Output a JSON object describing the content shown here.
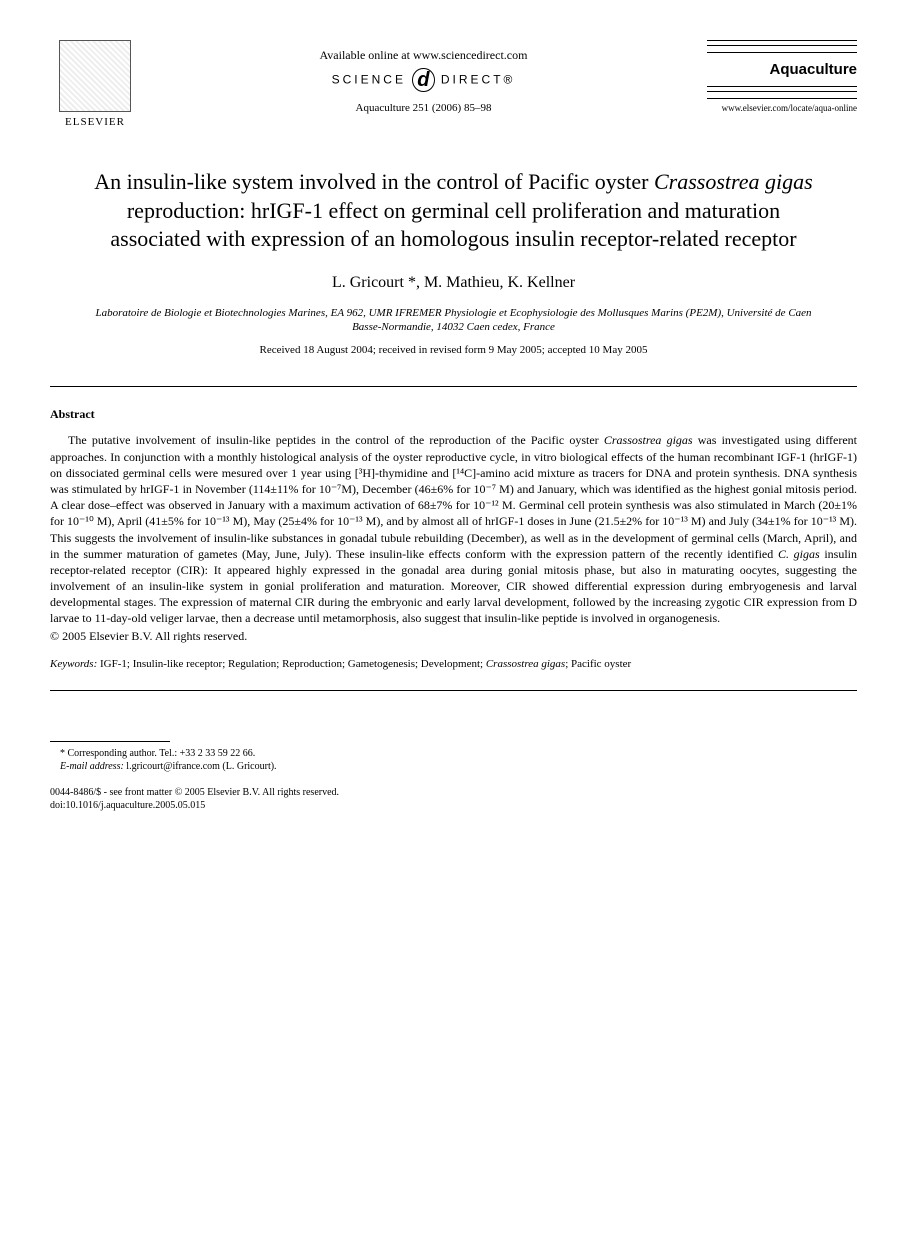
{
  "header": {
    "publisher": "ELSEVIER",
    "available_online": "Available online at www.sciencedirect.com",
    "sciencedirect_left": "SCIENCE",
    "sciencedirect_d": "d",
    "sciencedirect_right": "DIRECT®",
    "journal_ref": "Aquaculture 251 (2006) 85–98",
    "journal_name": "Aquaculture",
    "journal_url": "www.elsevier.com/locate/aqua-online"
  },
  "title": {
    "line1": "An insulin-like system involved in the control of Pacific oyster ",
    "species": "Crassostrea gigas",
    "line2": " reproduction: hrIGF-1 effect on germinal cell proliferation and maturation associated with expression of an homologous insulin receptor-related receptor"
  },
  "authors": "L. Gricourt *, M. Mathieu, K. Kellner",
  "affiliation": "Laboratoire de Biologie et Biotechnologies Marines, EA 962, UMR IFREMER Physiologie et Ecophysiologie des Mollusques Marins (PE2M), Université de Caen Basse-Normandie, 14032 Caen cedex, France",
  "dates": "Received 18 August 2004; received in revised form 9 May 2005; accepted 10 May 2005",
  "abstract": {
    "heading": "Abstract",
    "body_pre": "The putative involvement of insulin-like peptides in the control of the reproduction of the Pacific oyster ",
    "species1": "Crassostrea gigas",
    "body_mid": " was investigated using different approaches. In conjunction with a monthly histological analysis of the oyster reproductive cycle, in vitro biological effects of the human recombinant IGF-1 (hrIGF-1) on dissociated germinal cells were mesured over 1 year using [³H]-thymidine and [¹⁴C]-amino acid mixture as tracers for DNA and protein synthesis. DNA synthesis was stimulated by hrIGF-1 in November (114±11% for 10⁻⁷M), December (46±6% for 10⁻⁷ M) and January, which was identified as the highest gonial mitosis period. A clear dose–effect was observed in January with a maximum activation of 68±7% for 10⁻¹² M. Germinal cell protein synthesis was also stimulated in March (20±1% for 10⁻¹⁰ M), April (41±5% for 10⁻¹³ M), May (25±4% for 10⁻¹³ M), and by almost all of hrIGF-1 doses in June (21.5±2% for 10⁻¹³ M) and July (34±1% for 10⁻¹³ M). This suggests the involvement of insulin-like substances in gonadal tubule rebuilding (December), as well as in the development of germinal cells (March, April), and in the summer maturation of gametes (May, June, July). These insulin-like effects conform with the expression pattern of the recently identified ",
    "species2": "C. gigas",
    "body_post": " insulin receptor-related receptor (CIR): It appeared highly expressed in the gonadal area during gonial mitosis phase, but also in maturating oocytes, suggesting the involvement of an insulin-like system in gonial proliferation and maturation. Moreover, CIR showed differential expression during embryogenesis and larval developmental stages. The expression of maternal CIR during the embryonic and early larval development, followed by the increasing zygotic CIR expression from D larvae to 11-day-old veliger larvae, then a decrease until metamorphosis, also suggest that insulin-like peptide is involved in organogenesis.",
    "copyright": "© 2005 Elsevier B.V. All rights reserved."
  },
  "keywords": {
    "label": "Keywords:",
    "list_pre": " IGF-1; Insulin-like receptor; Regulation; Reproduction; Gametogenesis; Development; ",
    "species": "Crassostrea gigas",
    "list_post": "; Pacific oyster"
  },
  "footer": {
    "corresponding": "* Corresponding author. Tel.: +33 2 33 59 22 66.",
    "email_label": "E-mail address:",
    "email_value": " l.gricourt@ifrance.com (L. Gricourt).",
    "issn": "0044-8486/$ - see front matter © 2005 Elsevier B.V. All rights reserved.",
    "doi": "doi:10.1016/j.aquaculture.2005.05.015"
  }
}
